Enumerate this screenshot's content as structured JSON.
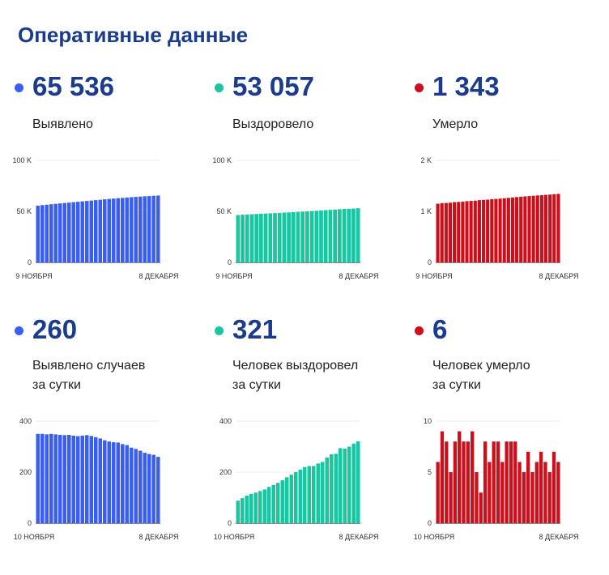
{
  "header": {
    "title": "Оперативные данные"
  },
  "colors": {
    "blue": "#3a5ef2",
    "green": "#17c7a0",
    "red": "#cc0f1b",
    "heading": "#1b3c8c"
  },
  "cards": [
    {
      "value": "65 536",
      "label_line1": "Выявлено",
      "label_line2": "",
      "color": "#3a5ef2"
    },
    {
      "value": "53 057",
      "label_line1": "Выздоровело",
      "label_line2": "",
      "color": "#17c7a0"
    },
    {
      "value": "1 343",
      "label_line1": "Умерло",
      "label_line2": "",
      "color": "#cc0f1b"
    },
    {
      "value": "260",
      "label_line1": "Выявлено случаев",
      "label_line2": "за сутки",
      "color": "#3a5ef2"
    },
    {
      "value": "321",
      "label_line1": "Человек выздоровел",
      "label_line2": "за сутки",
      "color": "#17c7a0"
    },
    {
      "value": "6",
      "label_line1": "Человек умерло",
      "label_line2": "за сутки",
      "color": "#cc0f1b"
    }
  ],
  "chart_data": [
    {
      "type": "bar",
      "color": "#3a5ef2",
      "ylim": [
        0,
        100000
      ],
      "yticks": [
        0,
        50000,
        100000
      ],
      "ytick_labels": [
        "0",
        "50 K",
        "100 K"
      ],
      "x_start_label": "9 НОЯБРЯ",
      "x_end_label": "8 ДЕКАБРЯ",
      "values": [
        55600,
        56100,
        56500,
        57000,
        57400,
        57800,
        58200,
        58600,
        59000,
        59400,
        59800,
        60200,
        60600,
        61000,
        61400,
        61800,
        62200,
        62500,
        62900,
        63200,
        63600,
        63900,
        64200,
        64500,
        64800,
        65000,
        65276,
        65536
      ]
    },
    {
      "type": "bar",
      "color": "#17c7a0",
      "ylim": [
        0,
        100000
      ],
      "yticks": [
        0,
        50000,
        100000
      ],
      "ytick_labels": [
        "0",
        "50 K",
        "100 K"
      ],
      "x_start_label": "9 НОЯБРЯ",
      "x_end_label": "8 ДЕКАБРЯ",
      "values": [
        46400,
        46700,
        47000,
        47200,
        47400,
        47700,
        47900,
        48100,
        48300,
        48500,
        48800,
        49000,
        49200,
        49500,
        49800,
        50000,
        50300,
        50600,
        50900,
        51200,
        51500,
        51800,
        52100,
        52400,
        52500,
        52736,
        53057
      ]
    },
    {
      "type": "bar",
      "color": "#cc0f1b",
      "ylim": [
        0,
        2000
      ],
      "yticks": [
        0,
        1000,
        2000
      ],
      "ytick_labels": [
        "0",
        "1 K",
        "2 K"
      ],
      "x_start_label": "9 НОЯБРЯ",
      "x_end_label": "8 ДЕКАБРЯ",
      "values": [
        1150,
        1160,
        1165,
        1170,
        1180,
        1185,
        1190,
        1200,
        1205,
        1210,
        1220,
        1225,
        1230,
        1240,
        1245,
        1250,
        1258,
        1265,
        1272,
        1280,
        1287,
        1294,
        1300,
        1307,
        1312,
        1318,
        1324,
        1330,
        1337,
        1343
      ]
    },
    {
      "type": "bar",
      "color": "#3a5ef2",
      "ylim": [
        0,
        400
      ],
      "yticks": [
        0,
        200,
        400
      ],
      "ytick_labels": [
        "0",
        "200",
        "400"
      ],
      "x_start_label": "10 НОЯБРЯ",
      "x_end_label": "8 ДЕКАБРЯ",
      "values": [
        350,
        350,
        348,
        350,
        348,
        346,
        345,
        346,
        343,
        341,
        343,
        345,
        342,
        337,
        332,
        325,
        320,
        317,
        316,
        310,
        306,
        296,
        291,
        284,
        276,
        271,
        268,
        260
      ]
    },
    {
      "type": "bar",
      "color": "#17c7a0",
      "ylim": [
        0,
        400
      ],
      "yticks": [
        0,
        200,
        400
      ],
      "ytick_labels": [
        "0",
        "200",
        "400"
      ],
      "x_start_label": "10 НОЯБРЯ",
      "x_end_label": "8 ДЕКАБРЯ",
      "values": [
        88,
        98,
        108,
        115,
        120,
        126,
        132,
        142,
        150,
        158,
        168,
        180,
        190,
        200,
        210,
        220,
        224,
        224,
        234,
        240,
        257,
        270,
        272,
        294,
        292,
        300,
        312,
        321
      ]
    },
    {
      "type": "bar",
      "color": "#cc0f1b",
      "ylim": [
        0,
        10
      ],
      "yticks": [
        0,
        5,
        10
      ],
      "ytick_labels": [
        "0",
        "5",
        "10"
      ],
      "x_start_label": "10 НОЯБРЯ",
      "x_end_label": "8 ДЕКАБРЯ",
      "values": [
        6,
        9,
        8,
        5,
        8,
        9,
        8,
        8,
        9,
        5,
        3,
        8,
        6,
        8,
        8,
        6,
        8,
        8,
        8,
        6,
        5,
        7,
        5,
        6,
        7,
        6,
        5,
        7,
        6
      ]
    }
  ]
}
